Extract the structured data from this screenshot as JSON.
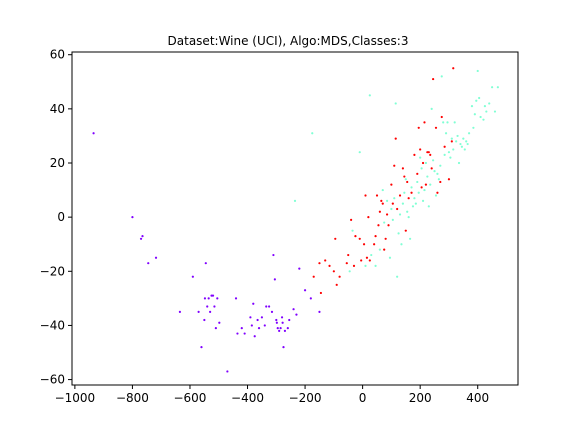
{
  "chart_data": {
    "type": "scatter",
    "title": "Dataset:Wine (UCI), Algo:MDS,Classes:3",
    "xlabel": "",
    "ylabel": "",
    "xlim": [
      -1010,
      540
    ],
    "ylim": [
      -62,
      61
    ],
    "xticks": [
      -1000,
      -800,
      -600,
      -400,
      -200,
      0,
      200,
      400
    ],
    "yticks": [
      -60,
      -40,
      -20,
      0,
      20,
      40,
      60
    ],
    "xtick_labels": [
      "−1000",
      "−800",
      "−600",
      "−400",
      "−200",
      "0",
      "200",
      "400"
    ],
    "ytick_labels": [
      "−60",
      "−40",
      "−20",
      "0",
      "20",
      "40",
      "60"
    ],
    "grid": false,
    "legend": "none",
    "series": [
      {
        "color": "#8000ff",
        "points": [
          [
            -935,
            31
          ],
          [
            -800,
            0
          ],
          [
            -770,
            -8
          ],
          [
            -765,
            -7
          ],
          [
            -745,
            -17
          ],
          [
            -718,
            -15
          ],
          [
            -635,
            -35
          ],
          [
            -590,
            -22
          ],
          [
            -570,
            -35
          ],
          [
            -560,
            -48
          ],
          [
            -550,
            -38
          ],
          [
            -548,
            -30
          ],
          [
            -545,
            -17
          ],
          [
            -540,
            -33
          ],
          [
            -535,
            -30
          ],
          [
            -530,
            -35
          ],
          [
            -525,
            -29
          ],
          [
            -520,
            -29
          ],
          [
            -515,
            -33
          ],
          [
            -510,
            -41
          ],
          [
            -505,
            -30
          ],
          [
            -498,
            -39
          ],
          [
            -470,
            -57
          ],
          [
            -440,
            -30
          ],
          [
            -435,
            -43
          ],
          [
            -420,
            -41
          ],
          [
            -410,
            -43
          ],
          [
            -390,
            -37
          ],
          [
            -385,
            -40
          ],
          [
            -380,
            -32
          ],
          [
            -375,
            -44
          ],
          [
            -365,
            -38
          ],
          [
            -360,
            -41
          ],
          [
            -350,
            -37
          ],
          [
            -340,
            -40
          ],
          [
            -335,
            -33
          ],
          [
            -325,
            -33
          ],
          [
            -315,
            -35
          ],
          [
            -310,
            -14
          ],
          [
            -305,
            -23
          ],
          [
            -300,
            -38
          ],
          [
            -298,
            -39
          ],
          [
            -295,
            -41
          ],
          [
            -290,
            -42
          ],
          [
            -285,
            -41
          ],
          [
            -280,
            -37
          ],
          [
            -278,
            -39
          ],
          [
            -275,
            -48
          ],
          [
            -270,
            -42
          ],
          [
            -260,
            -41
          ],
          [
            -255,
            -38
          ],
          [
            -240,
            -34
          ],
          [
            -230,
            -36
          ],
          [
            -220,
            -19
          ],
          [
            -200,
            -27
          ],
          [
            -180,
            -30
          ],
          [
            -150,
            -35
          ]
        ]
      },
      {
        "color": "#ff0000",
        "points": [
          [
            -170,
            -22
          ],
          [
            -150,
            -17
          ],
          [
            -145,
            -28
          ],
          [
            -130,
            -16
          ],
          [
            -115,
            -18
          ],
          [
            -100,
            -20
          ],
          [
            -95,
            -8
          ],
          [
            -90,
            -25
          ],
          [
            -80,
            -22
          ],
          [
            -55,
            -17
          ],
          [
            -50,
            -14
          ],
          [
            -40,
            -1
          ],
          [
            -30,
            -18
          ],
          [
            -25,
            -7
          ],
          [
            -10,
            -8
          ],
          [
            -5,
            -16
          ],
          [
            5,
            -10
          ],
          [
            10,
            8
          ],
          [
            15,
            -15
          ],
          [
            20,
            0
          ],
          [
            25,
            -16
          ],
          [
            40,
            -10
          ],
          [
            45,
            -7
          ],
          [
            50,
            8
          ],
          [
            55,
            -3
          ],
          [
            60,
            2
          ],
          [
            65,
            6
          ],
          [
            70,
            5
          ],
          [
            75,
            -12
          ],
          [
            80,
            -8
          ],
          [
            85,
            1
          ],
          [
            90,
            -3
          ],
          [
            100,
            12
          ],
          [
            105,
            5
          ],
          [
            110,
            19
          ],
          [
            115,
            29
          ],
          [
            120,
            3
          ],
          [
            130,
            8
          ],
          [
            140,
            18
          ],
          [
            145,
            15
          ],
          [
            150,
            -5
          ],
          [
            155,
            13
          ],
          [
            160,
            7
          ],
          [
            170,
            9
          ],
          [
            180,
            23
          ],
          [
            190,
            16
          ],
          [
            195,
            33
          ],
          [
            200,
            25
          ],
          [
            205,
            11
          ],
          [
            210,
            20
          ],
          [
            215,
            35
          ],
          [
            220,
            12
          ],
          [
            225,
            24
          ],
          [
            230,
            24
          ],
          [
            235,
            23
          ],
          [
            240,
            18
          ],
          [
            245,
            51
          ],
          [
            255,
            33
          ],
          [
            260,
            9
          ],
          [
            270,
            13
          ],
          [
            275,
            37
          ],
          [
            285,
            26
          ],
          [
            300,
            14
          ],
          [
            310,
            28
          ],
          [
            315,
            55
          ]
        ]
      },
      {
        "color": "#80ffd4",
        "points": [
          [
            -235,
            6
          ],
          [
            -175,
            31
          ],
          [
            -45,
            -20
          ],
          [
            -35,
            -5
          ],
          [
            -10,
            24
          ],
          [
            10,
            -18
          ],
          [
            25,
            45
          ],
          [
            30,
            -14
          ],
          [
            45,
            -18
          ],
          [
            60,
            -12
          ],
          [
            70,
            10
          ],
          [
            75,
            -2
          ],
          [
            85,
            6
          ],
          [
            95,
            -15
          ],
          [
            100,
            3
          ],
          [
            105,
            -1
          ],
          [
            110,
            7
          ],
          [
            115,
            42
          ],
          [
            120,
            -22
          ],
          [
            125,
            -6
          ],
          [
            130,
            1
          ],
          [
            135,
            -10
          ],
          [
            140,
            5
          ],
          [
            145,
            9
          ],
          [
            150,
            14
          ],
          [
            155,
            2
          ],
          [
            160,
            0
          ],
          [
            165,
            -8
          ],
          [
            170,
            11
          ],
          [
            175,
            4
          ],
          [
            180,
            7
          ],
          [
            185,
            5
          ],
          [
            190,
            13
          ],
          [
            195,
            9
          ],
          [
            200,
            22
          ],
          [
            205,
            18
          ],
          [
            210,
            6
          ],
          [
            215,
            10
          ],
          [
            220,
            20
          ],
          [
            225,
            15
          ],
          [
            230,
            4
          ],
          [
            235,
            12
          ],
          [
            240,
            40
          ],
          [
            245,
            21
          ],
          [
            250,
            17
          ],
          [
            255,
            8
          ],
          [
            260,
            16
          ],
          [
            265,
            14
          ],
          [
            270,
            19
          ],
          [
            275,
            52
          ],
          [
            280,
            35
          ],
          [
            285,
            23
          ],
          [
            290,
            31
          ],
          [
            295,
            35
          ],
          [
            300,
            24
          ],
          [
            305,
            22
          ],
          [
            310,
            29
          ],
          [
            315,
            25
          ],
          [
            320,
            35
          ],
          [
            325,
            28
          ],
          [
            330,
            30
          ],
          [
            335,
            20
          ],
          [
            340,
            27
          ],
          [
            345,
            26
          ],
          [
            350,
            29
          ],
          [
            355,
            25
          ],
          [
            360,
            28
          ],
          [
            365,
            27
          ],
          [
            370,
            31
          ],
          [
            380,
            41
          ],
          [
            385,
            33
          ],
          [
            390,
            38
          ],
          [
            395,
            43
          ],
          [
            400,
            54
          ],
          [
            405,
            44
          ],
          [
            410,
            37
          ],
          [
            420,
            36
          ],
          [
            425,
            41
          ],
          [
            430,
            39
          ],
          [
            440,
            42
          ],
          [
            450,
            48
          ],
          [
            460,
            39
          ],
          [
            470,
            48
          ]
        ]
      }
    ]
  }
}
